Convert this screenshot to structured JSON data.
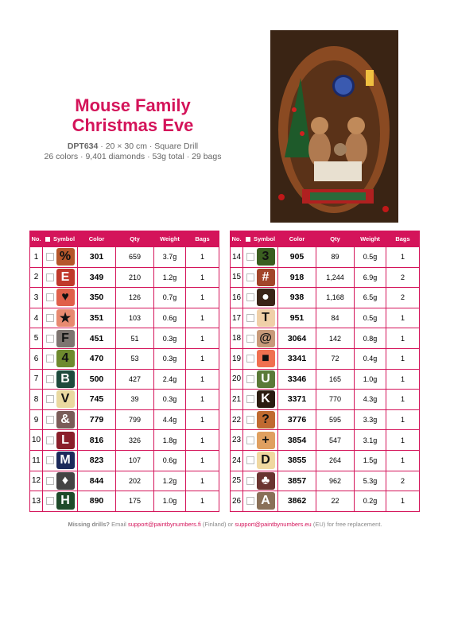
{
  "header": {
    "title": "Mouse Family Christmas Eve",
    "code": "DPT634",
    "details": "· 20 × 30 cm · Square Drill",
    "stats": "26 colors · 9,401 diamonds · 53g total · 29 bags"
  },
  "columns": [
    "No.",
    "Symbol",
    "Color",
    "Qty",
    "Weight",
    "Bags"
  ],
  "tables": [
    {
      "rows": [
        {
          "no": "1",
          "symbol": "%",
          "color": "301",
          "qty": "659",
          "weight": "3.7g",
          "bags": "1",
          "bg": "#b5562a",
          "fg": "#111"
        },
        {
          "no": "2",
          "symbol": "E",
          "color": "349",
          "qty": "210",
          "weight": "1.2g",
          "bags": "1",
          "bg": "#c0392b",
          "fg": "#fff"
        },
        {
          "no": "3",
          "symbol": "♥",
          "color": "350",
          "qty": "126",
          "weight": "0.7g",
          "bags": "1",
          "bg": "#e0604a",
          "fg": "#111"
        },
        {
          "no": "4",
          "symbol": "★",
          "color": "351",
          "qty": "103",
          "weight": "0.6g",
          "bags": "1",
          "bg": "#e88a70",
          "fg": "#111"
        },
        {
          "no": "5",
          "symbol": "F",
          "color": "451",
          "qty": "51",
          "weight": "0.3g",
          "bags": "1",
          "bg": "#7d7470",
          "fg": "#111"
        },
        {
          "no": "6",
          "symbol": "4",
          "color": "470",
          "qty": "53",
          "weight": "0.3g",
          "bags": "1",
          "bg": "#6e8a2e",
          "fg": "#111"
        },
        {
          "no": "7",
          "symbol": "B",
          "color": "500",
          "qty": "427",
          "weight": "2.4g",
          "bags": "1",
          "bg": "#1e4a3c",
          "fg": "#fff"
        },
        {
          "no": "8",
          "symbol": "V",
          "color": "745",
          "qty": "39",
          "weight": "0.3g",
          "bags": "1",
          "bg": "#ead9a0",
          "fg": "#111"
        },
        {
          "no": "9",
          "symbol": "&",
          "color": "779",
          "qty": "799",
          "weight": "4.4g",
          "bags": "1",
          "bg": "#7a5c58",
          "fg": "#fff"
        },
        {
          "no": "10",
          "symbol": "L",
          "color": "816",
          "qty": "326",
          "weight": "1.8g",
          "bags": "1",
          "bg": "#8a1e2a",
          "fg": "#fff"
        },
        {
          "no": "11",
          "symbol": "M",
          "color": "823",
          "qty": "107",
          "weight": "0.6g",
          "bags": "1",
          "bg": "#1c2a5a",
          "fg": "#fff"
        },
        {
          "no": "12",
          "symbol": "♦",
          "color": "844",
          "qty": "202",
          "weight": "1.2g",
          "bags": "1",
          "bg": "#444444",
          "fg": "#fff"
        },
        {
          "no": "13",
          "symbol": "H",
          "color": "890",
          "qty": "175",
          "weight": "1.0g",
          "bags": "1",
          "bg": "#1e4a2a",
          "fg": "#fff"
        }
      ]
    },
    {
      "rows": [
        {
          "no": "14",
          "symbol": "3",
          "color": "905",
          "qty": "89",
          "weight": "0.5g",
          "bags": "1",
          "bg": "#3a5e20",
          "fg": "#111"
        },
        {
          "no": "15",
          "symbol": "#",
          "color": "918",
          "qty": "1,244",
          "weight": "6.9g",
          "bags": "2",
          "bg": "#a2452a",
          "fg": "#fff"
        },
        {
          "no": "16",
          "symbol": "●",
          "color": "938",
          "qty": "1,168",
          "weight": "6.5g",
          "bags": "2",
          "bg": "#3a2418",
          "fg": "#fff"
        },
        {
          "no": "17",
          "symbol": "T",
          "color": "951",
          "qty": "84",
          "weight": "0.5g",
          "bags": "1",
          "bg": "#f0d0a8",
          "fg": "#111"
        },
        {
          "no": "18",
          "symbol": "@",
          "color": "3064",
          "qty": "142",
          "weight": "0.8g",
          "bags": "1",
          "bg": "#c89a7a",
          "fg": "#111"
        },
        {
          "no": "19",
          "symbol": "■",
          "color": "3341",
          "qty": "72",
          "weight": "0.4g",
          "bags": "1",
          "bg": "#f07050",
          "fg": "#111"
        },
        {
          "no": "20",
          "symbol": "U",
          "color": "3346",
          "qty": "165",
          "weight": "1.0g",
          "bags": "1",
          "bg": "#5a7a38",
          "fg": "#fff"
        },
        {
          "no": "21",
          "symbol": "K",
          "color": "3371",
          "qty": "770",
          "weight": "4.3g",
          "bags": "1",
          "bg": "#2a1c10",
          "fg": "#fff"
        },
        {
          "no": "22",
          "symbol": "?",
          "color": "3776",
          "qty": "595",
          "weight": "3.3g",
          "bags": "1",
          "bg": "#c06a30",
          "fg": "#111"
        },
        {
          "no": "23",
          "symbol": "+",
          "color": "3854",
          "qty": "547",
          "weight": "3.1g",
          "bags": "1",
          "bg": "#e0a060",
          "fg": "#111"
        },
        {
          "no": "24",
          "symbol": "D",
          "color": "3855",
          "qty": "264",
          "weight": "1.5g",
          "bags": "1",
          "bg": "#f0d8a0",
          "fg": "#111"
        },
        {
          "no": "25",
          "symbol": "♣",
          "color": "3857",
          "qty": "962",
          "weight": "5.3g",
          "bags": "2",
          "bg": "#6a3430",
          "fg": "#fff"
        },
        {
          "no": "26",
          "symbol": "A",
          "color": "3862",
          "qty": "22",
          "weight": "0.2g",
          "bags": "1",
          "bg": "#8a7058",
          "fg": "#fff"
        }
      ]
    }
  ],
  "footer": {
    "lead": "Missing drills?",
    "text1": "Email",
    "email1": "support@paintbynumbers.fi",
    "text2": "(Finland) or",
    "email2": "support@paintbynumbers.eu",
    "text3": "(EU) for free replacement."
  }
}
